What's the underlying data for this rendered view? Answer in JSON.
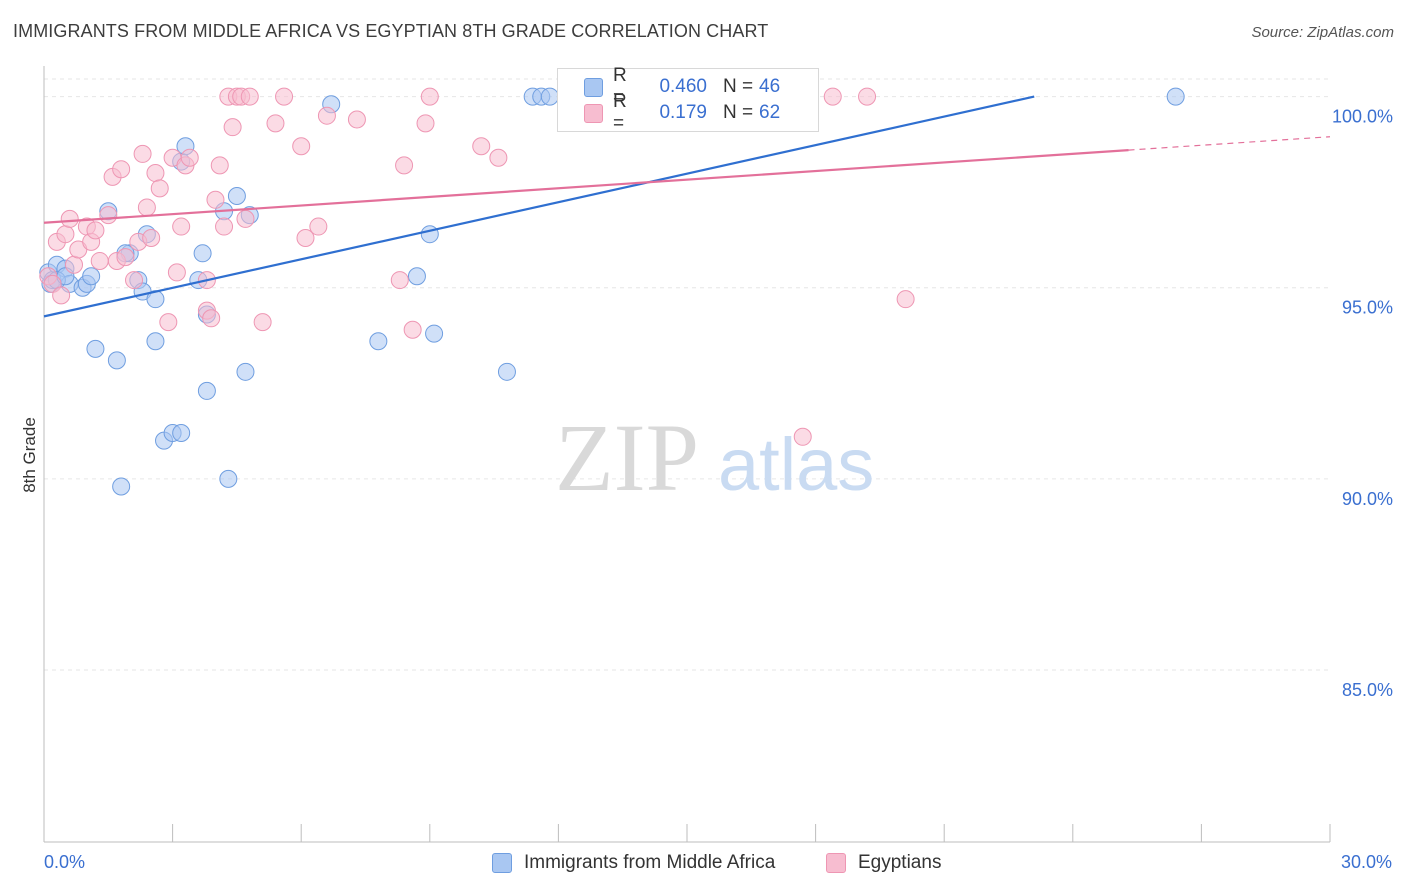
{
  "header": {
    "title": "IMMIGRANTS FROM MIDDLE AFRICA VS EGYPTIAN 8TH GRADE CORRELATION CHART",
    "source": "Source: ZipAtlas.com"
  },
  "legend": {
    "r_label": "R =",
    "n_label": "N =",
    "rows": [
      {
        "r": "0.460",
        "n": "46"
      },
      {
        "r": "0.179",
        "n": "62"
      }
    ]
  },
  "watermark": {
    "zip": "ZIP",
    "atlas": "atlas"
  },
  "colors": {
    "blue_fill": "#a9c7f2",
    "blue_stroke": "#6f9ee0",
    "blue_line": "#2f6fd0",
    "pink_fill": "#f7bdd0",
    "pink_stroke": "#ee96b3",
    "pink_line": "#e3709a",
    "axis_text": "#3a6fd0",
    "grid": "#e6e6e6"
  },
  "chart_data": {
    "type": "scatter",
    "title": "IMMIGRANTS FROM MIDDLE AFRICA VS EGYPTIAN 8TH GRADE CORRELATION CHART",
    "xlabel": "",
    "ylabel": "8th Grade",
    "xlim": [
      0,
      30
    ],
    "ylim": [
      80.5,
      100.8
    ],
    "x_tick_labels": [
      "0.0%",
      "30.0%"
    ],
    "y_ticks": [
      85,
      90,
      95,
      100
    ],
    "y_tick_labels": [
      "85.0%",
      "90.0%",
      "95.0%",
      "100.0%"
    ],
    "grid": "horizontal dashed",
    "legend_position": "top-center",
    "series": [
      {
        "name": "Immigrants from Middle Africa",
        "color": "#a9c7f2",
        "r": 0.46,
        "n": 46,
        "trend": {
          "x": [
            0,
            23.1
          ],
          "y": [
            94.25,
            100.0
          ]
        },
        "points": [
          [
            0.1,
            95.4
          ],
          [
            0.15,
            95.1
          ],
          [
            0.2,
            95.2
          ],
          [
            0.3,
            95.6
          ],
          [
            0.5,
            95.5
          ],
          [
            0.6,
            95.1
          ],
          [
            0.9,
            95.0
          ],
          [
            1.0,
            95.1
          ],
          [
            1.1,
            95.3
          ],
          [
            1.2,
            93.4
          ],
          [
            1.5,
            97.0
          ],
          [
            1.7,
            93.1
          ],
          [
            1.8,
            89.8
          ],
          [
            2.0,
            95.9
          ],
          [
            2.2,
            95.2
          ],
          [
            2.3,
            94.9
          ],
          [
            2.4,
            96.4
          ],
          [
            2.6,
            94.7
          ],
          [
            2.6,
            93.6
          ],
          [
            2.8,
            91.0
          ],
          [
            3.0,
            91.2
          ],
          [
            3.2,
            98.3
          ],
          [
            3.3,
            98.7
          ],
          [
            3.2,
            91.2
          ],
          [
            3.6,
            95.2
          ],
          [
            3.7,
            95.9
          ],
          [
            3.8,
            94.3
          ],
          [
            3.8,
            92.3
          ],
          [
            4.2,
            97.0
          ],
          [
            4.3,
            90.0
          ],
          [
            4.5,
            97.4
          ],
          [
            4.7,
            92.8
          ],
          [
            4.8,
            96.9
          ],
          [
            6.7,
            99.8
          ],
          [
            7.8,
            93.6
          ],
          [
            8.7,
            95.3
          ],
          [
            9.0,
            96.4
          ],
          [
            9.1,
            93.8
          ],
          [
            10.8,
            92.8
          ],
          [
            11.4,
            100.0
          ],
          [
            11.6,
            100.0
          ],
          [
            11.8,
            100.0
          ],
          [
            26.4,
            100.0
          ],
          [
            0.3,
            95.2
          ],
          [
            1.9,
            95.9
          ],
          [
            0.5,
            95.3
          ]
        ]
      },
      {
        "name": "Egyptians",
        "color": "#f7bdd0",
        "r": 0.179,
        "n": 62,
        "trend": {
          "x": [
            0,
            25.3
          ],
          "y": [
            96.7,
            98.6
          ]
        },
        "trend_dashed": {
          "x": [
            25.3,
            30
          ],
          "y": [
            98.6,
            98.95
          ]
        },
        "points": [
          [
            0.1,
            95.3
          ],
          [
            0.2,
            95.1
          ],
          [
            0.3,
            96.2
          ],
          [
            0.4,
            94.8
          ],
          [
            0.5,
            96.4
          ],
          [
            0.6,
            96.8
          ],
          [
            0.7,
            95.6
          ],
          [
            0.8,
            96.0
          ],
          [
            1.0,
            96.6
          ],
          [
            1.1,
            96.2
          ],
          [
            1.2,
            96.5
          ],
          [
            1.3,
            95.7
          ],
          [
            1.5,
            96.9
          ],
          [
            1.6,
            97.9
          ],
          [
            1.7,
            95.7
          ],
          [
            1.8,
            98.1
          ],
          [
            1.9,
            95.8
          ],
          [
            2.1,
            95.2
          ],
          [
            2.2,
            96.2
          ],
          [
            2.3,
            98.5
          ],
          [
            2.4,
            97.1
          ],
          [
            2.5,
            96.3
          ],
          [
            2.6,
            98.0
          ],
          [
            2.7,
            97.6
          ],
          [
            2.9,
            94.1
          ],
          [
            3.0,
            98.4
          ],
          [
            3.1,
            95.4
          ],
          [
            3.2,
            96.6
          ],
          [
            3.3,
            98.2
          ],
          [
            3.4,
            98.4
          ],
          [
            3.8,
            95.2
          ],
          [
            3.8,
            94.4
          ],
          [
            3.9,
            94.2
          ],
          [
            4.0,
            97.3
          ],
          [
            4.1,
            98.2
          ],
          [
            4.2,
            96.6
          ],
          [
            4.3,
            100.0
          ],
          [
            4.4,
            99.2
          ],
          [
            4.5,
            100.0
          ],
          [
            4.6,
            100.0
          ],
          [
            4.7,
            96.8
          ],
          [
            4.8,
            100.0
          ],
          [
            5.1,
            94.1
          ],
          [
            5.4,
            99.3
          ],
          [
            5.6,
            100.0
          ],
          [
            6.0,
            98.7
          ],
          [
            6.1,
            96.3
          ],
          [
            6.4,
            96.6
          ],
          [
            6.6,
            99.5
          ],
          [
            7.3,
            99.4
          ],
          [
            8.3,
            95.2
          ],
          [
            8.4,
            98.2
          ],
          [
            8.6,
            93.9
          ],
          [
            8.9,
            99.3
          ],
          [
            9.0,
            100.0
          ],
          [
            10.2,
            98.7
          ],
          [
            10.6,
            98.4
          ],
          [
            13.2,
            100.0
          ],
          [
            17.7,
            91.1
          ],
          [
            18.4,
            100.0
          ],
          [
            19.2,
            100.0
          ],
          [
            20.1,
            94.7
          ]
        ]
      }
    ]
  },
  "bottom_legend": {
    "items": [
      "Immigrants from Middle Africa",
      "Egyptians"
    ]
  }
}
